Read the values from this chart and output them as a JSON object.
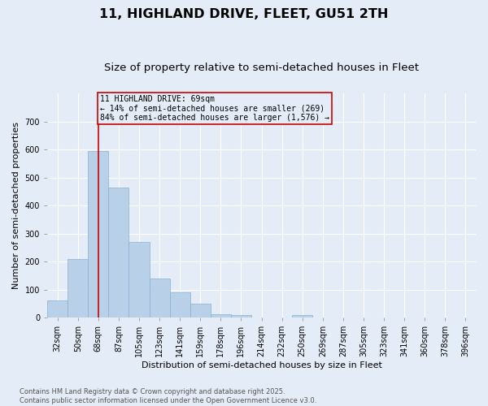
{
  "title": "11, HIGHLAND DRIVE, FLEET, GU51 2TH",
  "subtitle": "Size of property relative to semi-detached houses in Fleet",
  "xlabel": "Distribution of semi-detached houses by size in Fleet",
  "ylabel": "Number of semi-detached properties",
  "categories": [
    "32sqm",
    "50sqm",
    "68sqm",
    "87sqm",
    "105sqm",
    "123sqm",
    "141sqm",
    "159sqm",
    "178sqm",
    "196sqm",
    "214sqm",
    "232sqm",
    "250sqm",
    "269sqm",
    "287sqm",
    "305sqm",
    "323sqm",
    "341sqm",
    "360sqm",
    "378sqm",
    "396sqm"
  ],
  "values": [
    60,
    210,
    595,
    463,
    270,
    140,
    90,
    50,
    12,
    8,
    0,
    0,
    10,
    0,
    0,
    0,
    0,
    0,
    0,
    0,
    0
  ],
  "bar_color": "#b8d0e8",
  "bar_edge_color": "#8ab0d0",
  "background_color": "#e4edf7",
  "grid_color": "#ffffff",
  "vline_color": "#cc0000",
  "vline_x_index": 2,
  "annotation_text": "11 HIGHLAND DRIVE: 69sqm\n← 14% of semi-detached houses are smaller (269)\n84% of semi-detached houses are larger (1,576) →",
  "annotation_box_edge_color": "#cc0000",
  "annotation_box_bg": "#e4edf7",
  "ylim": [
    0,
    800
  ],
  "yticks": [
    0,
    100,
    200,
    300,
    400,
    500,
    600,
    700
  ],
  "footer": "Contains HM Land Registry data © Crown copyright and database right 2025.\nContains public sector information licensed under the Open Government Licence v3.0.",
  "title_fontsize": 11.5,
  "subtitle_fontsize": 9.5,
  "ylabel_fontsize": 8,
  "xlabel_fontsize": 8,
  "tick_fontsize": 7,
  "ann_fontsize": 7,
  "footer_fontsize": 6
}
